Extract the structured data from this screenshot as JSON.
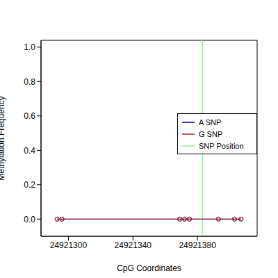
{
  "chart_data": {
    "type": "line",
    "x_label": "CpG Coordinates",
    "y_label": "Methylation Frequency",
    "x": [
      24921293,
      24921296,
      24921369,
      24921372,
      24921375,
      24921393,
      24921403,
      24921407
    ],
    "series": [
      {
        "name": "A SNP",
        "color": "#00008b",
        "marker": "circle",
        "values": [
          0,
          0,
          0,
          0,
          0,
          0,
          0,
          0
        ]
      },
      {
        "name": "G SNP",
        "color": "#b22222",
        "marker": "circle",
        "values": [
          0,
          0,
          0,
          0,
          0,
          0,
          0,
          0
        ]
      }
    ],
    "snp_position": {
      "name": "SNP Position",
      "x": 24921383,
      "color": "#90ee90"
    },
    "xlim": [
      24921283,
      24921417
    ],
    "xticks": [
      24921300,
      24921340,
      24921380
    ],
    "ylim": [
      -0.1,
      1.04
    ],
    "yticks": [
      {
        "value": 0,
        "label": "0.0"
      },
      0.2,
      0.4,
      0.6,
      0.8,
      {
        "value": 1,
        "label": "1.0"
      }
    ],
    "grid": false,
    "legend": "right"
  }
}
